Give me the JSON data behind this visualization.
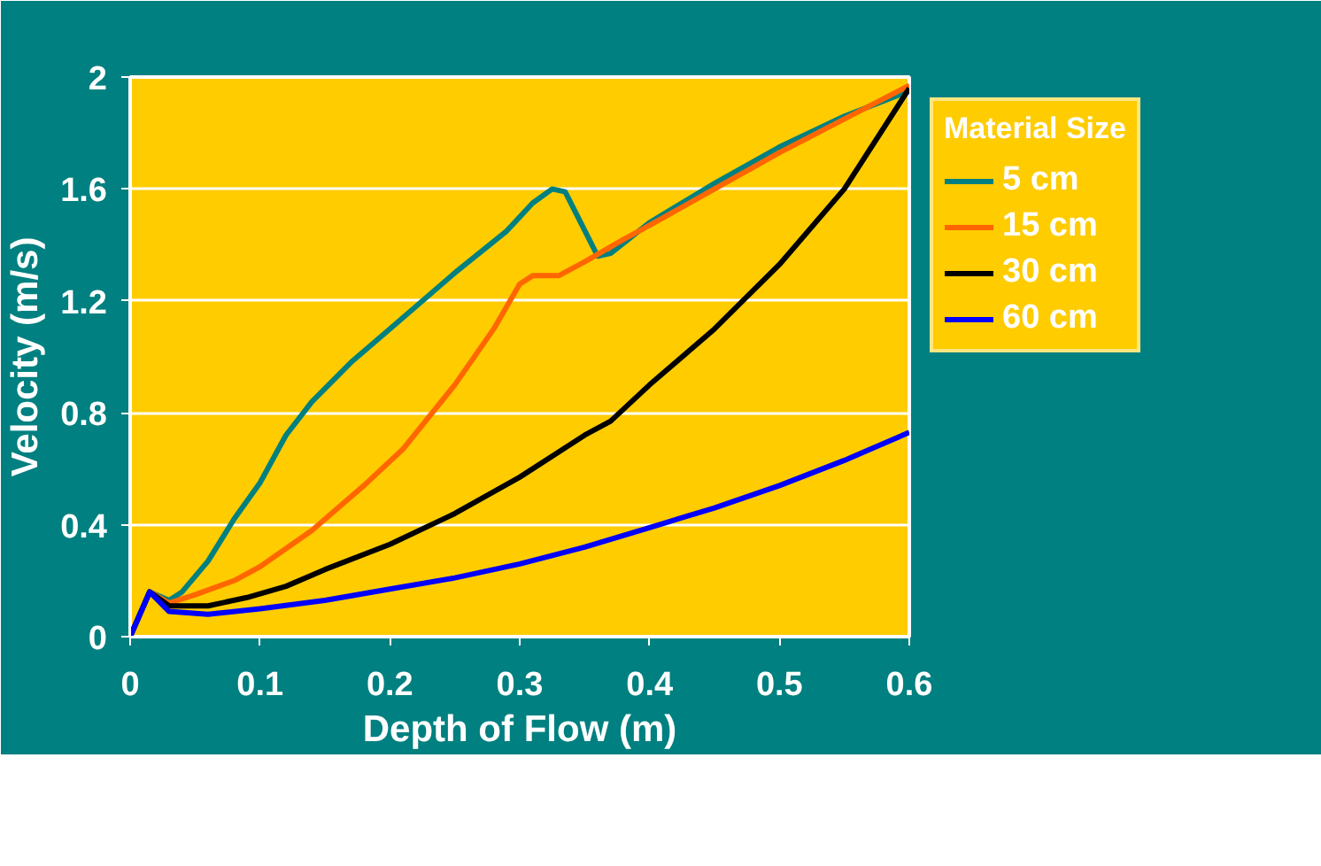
{
  "chart_data": {
    "type": "line",
    "xlabel": "Depth of Flow (m)",
    "ylabel": "Velocity (m/s)",
    "legend_title": "Material Size",
    "xlim": [
      0,
      0.6
    ],
    "ylim": [
      0,
      2
    ],
    "xticks": [
      0,
      0.1,
      0.2,
      0.3,
      0.4,
      0.5,
      0.6
    ],
    "yticks": [
      0,
      0.4,
      0.8,
      1.2,
      1.6,
      2
    ],
    "grid": "y",
    "legend": "right",
    "marker": "none",
    "line_style": "solid",
    "series": [
      {
        "name": "5 cm",
        "color": "#008080",
        "x": [
          0,
          0.015,
          0.03,
          0.04,
          0.06,
          0.08,
          0.1,
          0.12,
          0.14,
          0.17,
          0.2,
          0.25,
          0.29,
          0.31,
          0.325,
          0.335,
          0.36,
          0.37,
          0.4,
          0.45,
          0.5,
          0.55,
          0.6
        ],
        "values": [
          0,
          0.16,
          0.13,
          0.16,
          0.27,
          0.42,
          0.55,
          0.72,
          0.84,
          0.98,
          1.1,
          1.3,
          1.45,
          1.55,
          1.6,
          1.59,
          1.36,
          1.37,
          1.48,
          1.62,
          1.75,
          1.86,
          1.95
        ]
      },
      {
        "name": "15 cm",
        "color": "#ff6600",
        "x": [
          0,
          0.015,
          0.03,
          0.05,
          0.08,
          0.1,
          0.14,
          0.18,
          0.21,
          0.25,
          0.28,
          0.3,
          0.31,
          0.33,
          0.35,
          0.38,
          0.4,
          0.45,
          0.5,
          0.55,
          0.6
        ],
        "values": [
          0,
          0.16,
          0.12,
          0.15,
          0.2,
          0.25,
          0.38,
          0.54,
          0.67,
          0.9,
          1.1,
          1.26,
          1.29,
          1.29,
          1.34,
          1.42,
          1.47,
          1.6,
          1.73,
          1.85,
          1.97
        ]
      },
      {
        "name": "30 cm",
        "color": "#000000",
        "x": [
          0,
          0.015,
          0.03,
          0.06,
          0.09,
          0.12,
          0.15,
          0.2,
          0.25,
          0.3,
          0.35,
          0.37,
          0.4,
          0.45,
          0.5,
          0.55,
          0.6
        ],
        "values": [
          0,
          0.16,
          0.11,
          0.11,
          0.14,
          0.18,
          0.24,
          0.33,
          0.44,
          0.57,
          0.72,
          0.77,
          0.9,
          1.1,
          1.33,
          1.6,
          1.96
        ]
      },
      {
        "name": "60 cm",
        "color": "#0000ff",
        "x": [
          0,
          0.015,
          0.03,
          0.06,
          0.1,
          0.15,
          0.2,
          0.25,
          0.3,
          0.35,
          0.4,
          0.45,
          0.5,
          0.55,
          0.6
        ],
        "values": [
          0,
          0.16,
          0.09,
          0.08,
          0.1,
          0.13,
          0.17,
          0.21,
          0.26,
          0.32,
          0.39,
          0.46,
          0.54,
          0.63,
          0.73
        ]
      }
    ]
  }
}
